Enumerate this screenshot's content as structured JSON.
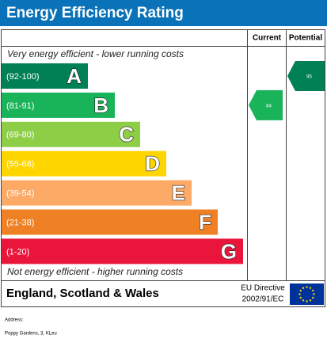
{
  "title": "Energy Efficiency Rating",
  "columns": {
    "current": "Current",
    "potential": "Potential"
  },
  "top_note": "Very energy efficient - lower running costs",
  "bottom_note": "Not energy efficient - higher running costs",
  "bands": [
    {
      "range": "(92-100)",
      "letter": "A",
      "color": "#008054"
    },
    {
      "range": "(81-91)",
      "letter": "B",
      "color": "#19b459"
    },
    {
      "range": "(69-80)",
      "letter": "C",
      "color": "#8dce46"
    },
    {
      "range": "(55-68)",
      "letter": "D",
      "color": "#ffd500"
    },
    {
      "range": "(39-54)",
      "letter": "E",
      "color": "#fcaa65"
    },
    {
      "range": "(21-38)",
      "letter": "F",
      "color": "#ef8023"
    },
    {
      "range": "(1-20)",
      "letter": "G",
      "color": "#e9153b"
    }
  ],
  "current": {
    "value": 84
  },
  "potential": {
    "value": 95
  },
  "footer": {
    "region": "England, Scotland & Wales",
    "directive": [
      "EU Directive",
      "2002/91/EC"
    ]
  },
  "address": [
    "Address:",
    "Poppy Gardens, 3, KLeu"
  ]
}
